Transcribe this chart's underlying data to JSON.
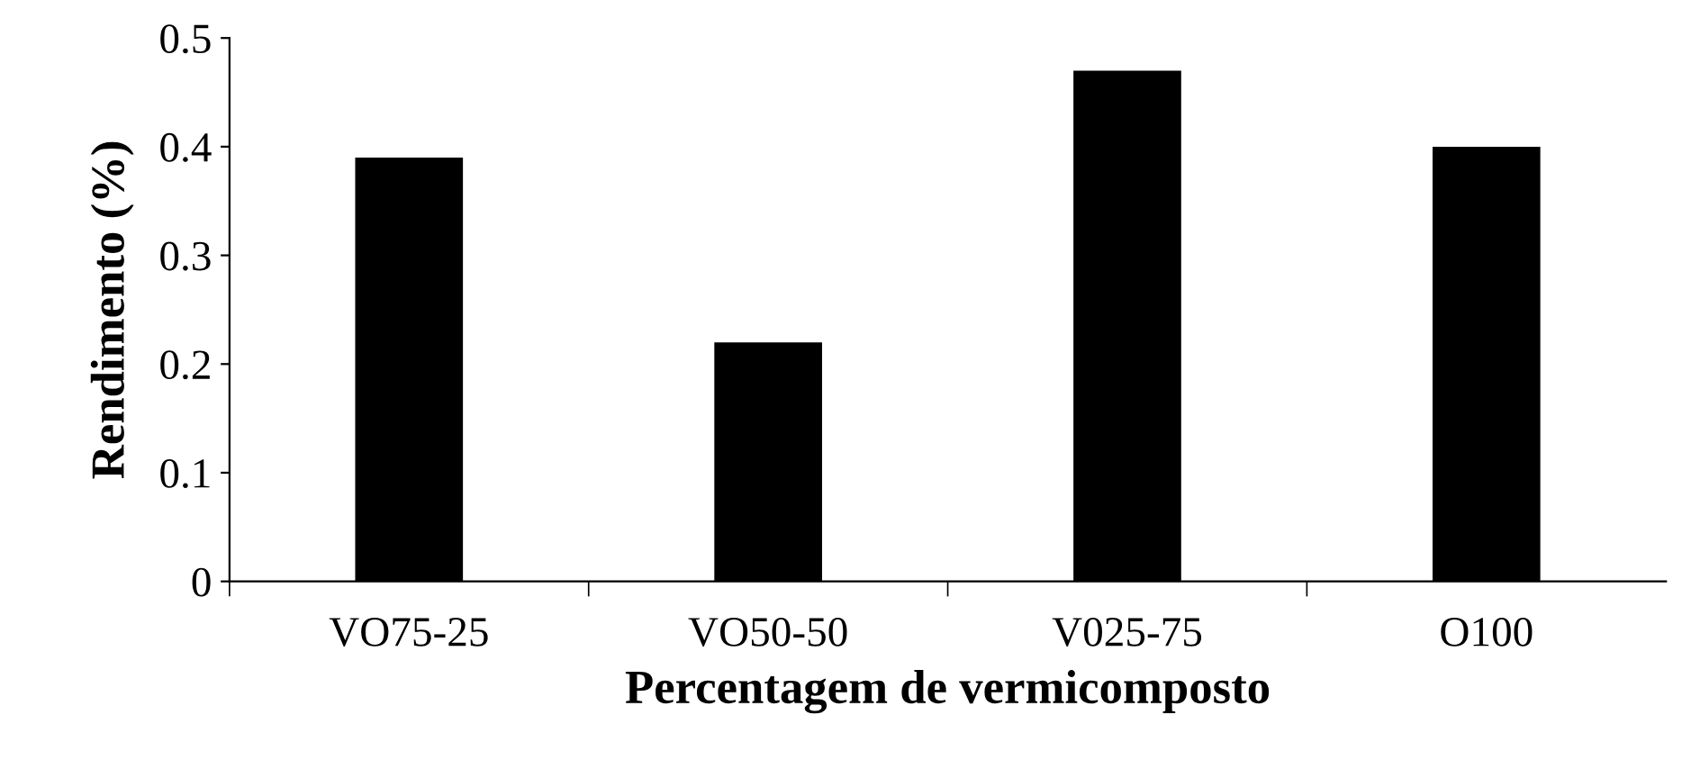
{
  "chart_data": {
    "type": "bar",
    "xlabel": "Percentagem de vermicomposto",
    "ylabel": "Rendimento (%)",
    "categories": [
      "VO75-25",
      "VO50-50",
      "V025-75",
      "O100"
    ],
    "values": [
      0.39,
      0.22,
      0.47,
      0.4
    ],
    "color": "#000000",
    "ylim": [
      0,
      0.5
    ],
    "yticks": [
      0,
      0.1,
      0.2,
      0.3,
      0.4,
      0.5
    ],
    "grid": false,
    "legend": false
  }
}
